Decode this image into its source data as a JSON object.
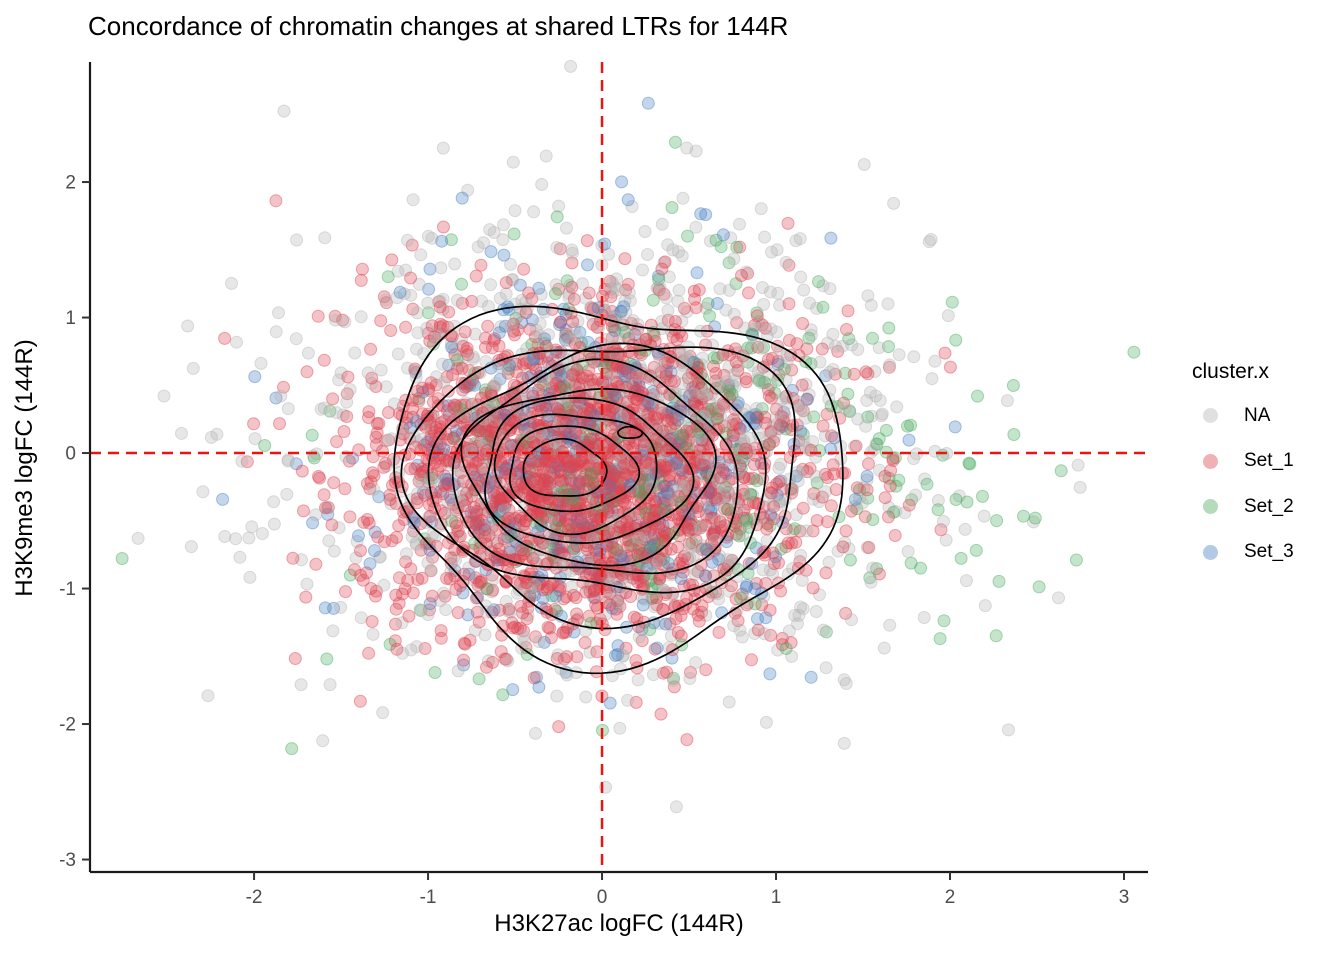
{
  "chart_data": {
    "type": "scatter",
    "subtype": "scatter_with_density_contours",
    "title": "Concordance of chromatin changes at shared LTRs for 144R",
    "xlabel": "H3K27ac logFC (144R)",
    "ylabel": "H3K9me3 logFC (144R)",
    "xlim": [
      -2.943,
      3.138
    ],
    "ylim": [
      -3.092,
      2.886
    ],
    "x_ticks": [
      -2,
      -1,
      0,
      1,
      2,
      3
    ],
    "y_ticks": [
      2,
      1,
      0,
      -1,
      -2,
      -3
    ],
    "grid": "off",
    "background": "#ffffff",
    "axis_color": "#1a1a1a",
    "tick_label_color": "#4d4d4d",
    "reference_lines": {
      "vline_x": 0,
      "hline_y": 0,
      "color": "#e81515",
      "style": "dashed"
    },
    "legend": {
      "title": "cluster.x",
      "position": "right",
      "items": [
        {
          "label": "NA",
          "color": "#b5b5b5"
        },
        {
          "label": "Set_1",
          "color": "#dc4451"
        },
        {
          "label": "Set_2",
          "color": "#4cab60"
        },
        {
          "label": "Set_3",
          "color": "#4781c2"
        }
      ]
    },
    "point_style": {
      "radius_px": 6,
      "fill_opacity": 0.32,
      "stroke_opacity": 0.45
    },
    "seed": 20144,
    "series": [
      {
        "name": "NA",
        "color": "#b5b5b5",
        "n": 1100,
        "mean": [
          0.05,
          0.05
        ],
        "sd": [
          0.88,
          0.82
        ]
      },
      {
        "name": "Set_1",
        "color": "#dc4451",
        "n": 2250,
        "mean": [
          -0.08,
          -0.15
        ],
        "sd": [
          0.63,
          0.6
        ]
      },
      {
        "name": "Set_2",
        "color": "#4cab60",
        "n": 300,
        "mean": [
          0.45,
          0.0
        ],
        "sd": [
          0.92,
          0.78
        ]
      },
      {
        "name": "Set_3",
        "color": "#4781c2",
        "n": 400,
        "mean": [
          0.0,
          -0.05
        ],
        "sd": [
          0.66,
          0.72
        ]
      }
    ],
    "density_contours": {
      "color": "#000000",
      "levels": [
        {
          "cx": 0.08,
          "cy": -0.18,
          "rx": 1.3,
          "ry": 1.28
        },
        {
          "cx": 0.04,
          "cy": -0.17,
          "rx": 1.1,
          "ry": 1.04
        },
        {
          "cx": 0.01,
          "cy": -0.16,
          "rx": 0.95,
          "ry": 0.9
        },
        {
          "cx": -0.03,
          "cy": -0.16,
          "rx": 0.82,
          "ry": 0.77
        },
        {
          "cx": -0.07,
          "cy": -0.15,
          "rx": 0.7,
          "ry": 0.65
        },
        {
          "cx": -0.11,
          "cy": -0.14,
          "rx": 0.58,
          "ry": 0.54
        },
        {
          "cx": -0.15,
          "cy": -0.13,
          "rx": 0.47,
          "ry": 0.43
        },
        {
          "cx": -0.18,
          "cy": -0.12,
          "rx": 0.36,
          "ry": 0.32
        },
        {
          "cx": -0.22,
          "cy": -0.12,
          "rx": 0.24,
          "ry": 0.21
        },
        {
          "cx": 0.16,
          "cy": 0.15,
          "rx": 0.07,
          "ry": 0.042
        }
      ]
    }
  }
}
